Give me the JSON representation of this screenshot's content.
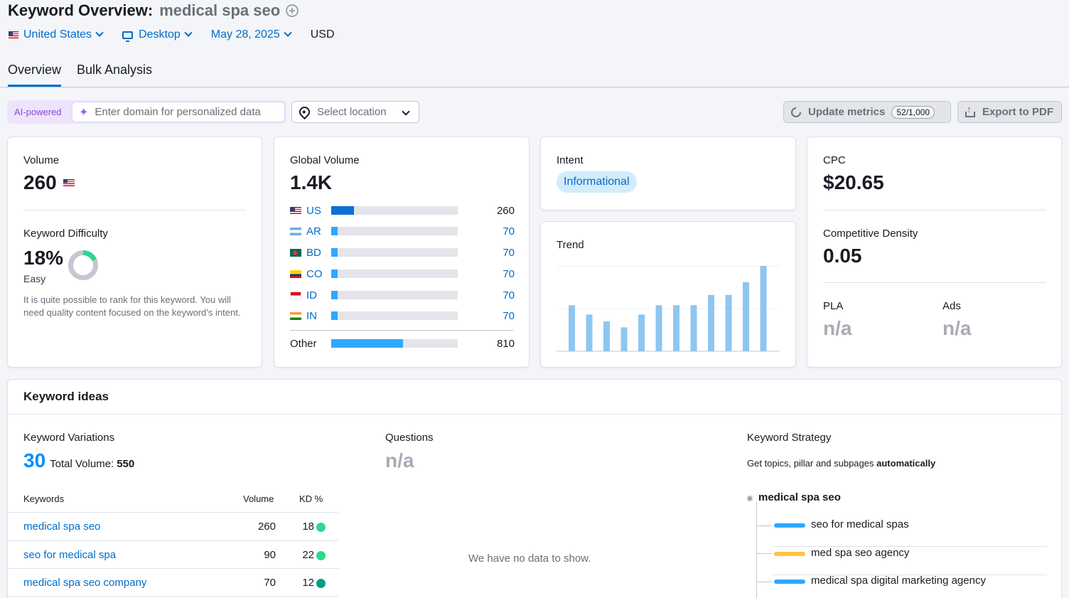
{
  "header": {
    "title_prefix": "Keyword Overview:",
    "keyword": "medical spa seo",
    "filters": {
      "country": "United States",
      "device": "Desktop",
      "date": "May 28, 2025",
      "currency": "USD"
    }
  },
  "tabs": [
    {
      "label": "Overview",
      "active": true
    },
    {
      "label": "Bulk Analysis",
      "active": false
    }
  ],
  "toolbar": {
    "ai_tag": "AI-powered",
    "domain_placeholder": "Enter domain for personalized data",
    "location_placeholder": "Select location",
    "update_label": "Update metrics",
    "update_count": "52/1,000",
    "export_label": "Export to PDF"
  },
  "volume": {
    "label": "Volume",
    "value": "260"
  },
  "difficulty": {
    "label": "Keyword Difficulty",
    "value": "18%",
    "level": "Easy",
    "percent": 18,
    "description": "It is quite possible to rank for this keyword. You will need quality content focused on the keyword’s intent."
  },
  "global_volume": {
    "label": "Global Volume",
    "value": "1.4K",
    "rows": [
      {
        "code": "US",
        "value": "260",
        "fraction": 0.18
      },
      {
        "code": "AR",
        "value": "70",
        "fraction": 0.05
      },
      {
        "code": "BD",
        "value": "70",
        "fraction": 0.05
      },
      {
        "code": "CO",
        "value": "70",
        "fraction": 0.05
      },
      {
        "code": "ID",
        "value": "70",
        "fraction": 0.05
      },
      {
        "code": "IN",
        "value": "70",
        "fraction": 0.05
      }
    ],
    "other": {
      "code": "Other",
      "value": "810",
      "fraction": 0.57
    }
  },
  "intent": {
    "label": "Intent",
    "badge": "Informational"
  },
  "trend": {
    "label": "Trend",
    "values": [
      0.54,
      0.43,
      0.35,
      0.28,
      0.43,
      0.54,
      0.54,
      0.54,
      0.66,
      0.66,
      0.81,
      1.0
    ]
  },
  "cpc": {
    "label": "CPC",
    "value": "$20.65"
  },
  "competitive_density": {
    "label": "Competitive Density",
    "value": "0.05"
  },
  "pla": {
    "label": "PLA",
    "value": "n/a"
  },
  "ads": {
    "label": "Ads",
    "value": "n/a"
  },
  "keyword_ideas": {
    "title": "Keyword ideas",
    "variations": {
      "label": "Keyword Variations",
      "count": "30",
      "total_label": "Total Volume:",
      "total_value": "550",
      "columns": {
        "keywords": "Keywords",
        "volume": "Volume",
        "kd": "KD %"
      },
      "rows": [
        {
          "keyword": "medical spa seo",
          "volume": "260",
          "kd": "18",
          "dot_color": "#2bd88f"
        },
        {
          "keyword": "seo for medical spa",
          "volume": "90",
          "kd": "22",
          "dot_color": "#2bd88f"
        },
        {
          "keyword": "medical spa seo company",
          "volume": "70",
          "kd": "12",
          "dot_color": "#009f81"
        }
      ]
    },
    "questions": {
      "label": "Questions",
      "value": "n/a",
      "empty": "We have no data to show."
    },
    "strategy": {
      "label": "Keyword Strategy",
      "subtitle": "Get topics, pillar and subpages",
      "subtitle_bold": "automatically",
      "root": "medical spa seo",
      "items": [
        {
          "label": "seo for medical spas",
          "color": "#2ea8ff"
        },
        {
          "label": "med spa seo agency",
          "color": "#ffc53d"
        },
        {
          "label": "medical spa digital marketing agency",
          "color": "#2ea8ff"
        }
      ]
    }
  }
}
